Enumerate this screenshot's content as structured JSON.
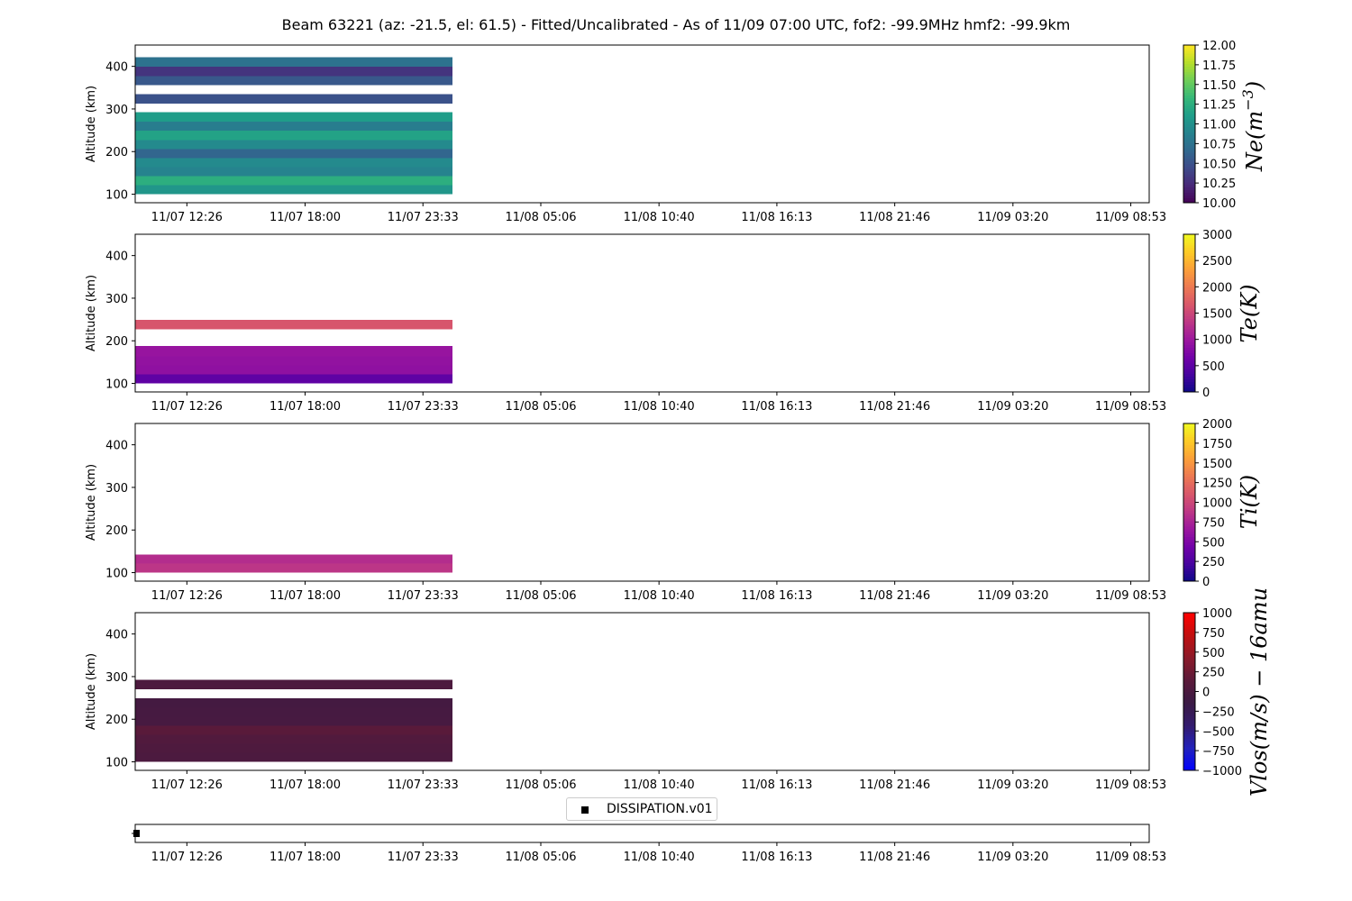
{
  "title": "Beam 63221 (az: -21.5, el: 61.5) - Fitted/Uncalibrated - As of 11/09 07:00 UTC, fof2: -99.9MHz  hmf2: -99.9km",
  "legend": {
    "label": "DISSIPATION.v01"
  },
  "chart_data": [
    {
      "type": "heatmap",
      "parameter": "Ne",
      "ylabel": "Altitude (km)",
      "ylim": [
        80,
        450
      ],
      "yticks": [
        100,
        200,
        300,
        400
      ],
      "xticks": [
        "11/07 12:26",
        "11/07 18:00",
        "11/07 23:33",
        "11/08 05:06",
        "11/08 10:40",
        "11/08 16:13",
        "11/08 21:46",
        "11/09 03:20",
        "11/09 08:53"
      ],
      "x_extent": [
        "11/07 10:00",
        "11/09 09:45"
      ],
      "data_x_range": [
        "11/07 10:00",
        "11/08 00:57"
      ],
      "colorbar": {
        "label": "Ne(m^-3)",
        "colormap": "viridis",
        "range": [
          10,
          12
        ],
        "ticks": [
          "10.00",
          "10.25",
          "10.50",
          "10.75",
          "11.00",
          "11.25",
          "11.50",
          "11.75",
          "12.00"
        ]
      },
      "bins": [
        {
          "alt": [
            100,
            121
          ],
          "value": 11.05
        },
        {
          "alt": [
            121,
            142
          ],
          "value": 11.25
        },
        {
          "alt": [
            142,
            164
          ],
          "value": 10.9
        },
        {
          "alt": [
            164,
            185
          ],
          "value": 10.95
        },
        {
          "alt": [
            185,
            206
          ],
          "value": 10.65
        },
        {
          "alt": [
            206,
            227
          ],
          "value": 10.95
        },
        {
          "alt": [
            227,
            249
          ],
          "value": 11.15
        },
        {
          "alt": [
            249,
            270
          ],
          "value": 10.85
        },
        {
          "alt": [
            270,
            292
          ],
          "value": 11.1
        },
        {
          "alt": [
            313,
            335
          ],
          "value": 10.5
        },
        {
          "alt": [
            356,
            377
          ],
          "value": 10.55
        },
        {
          "alt": [
            377,
            399
          ],
          "value": 10.3
        },
        {
          "alt": [
            399,
            421
          ],
          "value": 10.75
        }
      ]
    },
    {
      "type": "heatmap",
      "parameter": "Te",
      "ylabel": "Altitude (km)",
      "ylim": [
        80,
        450
      ],
      "yticks": [
        100,
        200,
        300,
        400
      ],
      "xticks": [
        "11/07 12:26",
        "11/07 18:00",
        "11/07 23:33",
        "11/08 05:06",
        "11/08 10:40",
        "11/08 16:13",
        "11/08 21:46",
        "11/09 03:20",
        "11/09 08:53"
      ],
      "x_extent": [
        "11/07 10:00",
        "11/09 09:45"
      ],
      "data_x_range": [
        "11/07 10:00",
        "11/08 00:57"
      ],
      "colorbar": {
        "label": "Te(K)",
        "colormap": "plasma",
        "range": [
          0,
          3000
        ],
        "ticks": [
          "0",
          "500",
          "1000",
          "1500",
          "2000",
          "2500",
          "3000"
        ]
      },
      "bins": [
        {
          "alt": [
            100,
            121
          ],
          "value": 520
        },
        {
          "alt": [
            121,
            142
          ],
          "value": 900
        },
        {
          "alt": [
            142,
            164
          ],
          "value": 920
        },
        {
          "alt": [
            164,
            188
          ],
          "value": 960
        },
        {
          "alt": [
            227,
            249
          ],
          "value": 1650
        }
      ]
    },
    {
      "type": "heatmap",
      "parameter": "Ti",
      "ylabel": "Altitude (km)",
      "ylim": [
        80,
        450
      ],
      "yticks": [
        100,
        200,
        300,
        400
      ],
      "xticks": [
        "11/07 12:26",
        "11/07 18:00",
        "11/07 23:33",
        "11/08 05:06",
        "11/08 10:40",
        "11/08 16:13",
        "11/08 21:46",
        "11/09 03:20",
        "11/09 08:53"
      ],
      "x_extent": [
        "11/07 10:00",
        "11/09 09:45"
      ],
      "data_x_range": [
        "11/07 10:00",
        "11/08 00:57"
      ],
      "colorbar": {
        "label": "Ti(K)",
        "colormap": "plasma",
        "range": [
          0,
          2000
        ],
        "ticks": [
          "0",
          "250",
          "500",
          "750",
          "1000",
          "1250",
          "1500",
          "1750",
          "2000"
        ]
      },
      "bins": [
        {
          "alt": [
            100,
            121
          ],
          "value": 880
        },
        {
          "alt": [
            121,
            142
          ],
          "value": 820
        }
      ]
    },
    {
      "type": "heatmap",
      "parameter": "Vlos",
      "ylabel": "Altitude (km)",
      "ylim": [
        80,
        450
      ],
      "yticks": [
        100,
        200,
        300,
        400
      ],
      "xticks": [
        "11/07 12:26",
        "11/07 18:00",
        "11/07 23:33",
        "11/08 05:06",
        "11/08 10:40",
        "11/08 16:13",
        "11/08 21:46",
        "11/09 03:20",
        "11/09 08:53"
      ],
      "x_extent": [
        "11/07 10:00",
        "11/09 09:45"
      ],
      "data_x_range": [
        "11/07 10:00",
        "11/08 00:57"
      ],
      "colorbar": {
        "label": "Vlos(m/s) - 16amu",
        "colormap": "bwr-dark",
        "range": [
          -1000,
          1000
        ],
        "ticks": [
          "-1000",
          "-750",
          "-500",
          "-250",
          "0",
          "250",
          "500",
          "750",
          "1000"
        ]
      },
      "bins": [
        {
          "alt": [
            100,
            121
          ],
          "value": 20
        },
        {
          "alt": [
            121,
            142
          ],
          "value": 40
        },
        {
          "alt": [
            142,
            164
          ],
          "value": 60
        },
        {
          "alt": [
            164,
            185
          ],
          "value": 130
        },
        {
          "alt": [
            185,
            206
          ],
          "value": -30
        },
        {
          "alt": [
            206,
            227
          ],
          "value": -40
        },
        {
          "alt": [
            227,
            249
          ],
          "value": -50
        },
        {
          "alt": [
            270,
            292
          ],
          "value": 30
        }
      ]
    },
    {
      "type": "scatter",
      "xticks": [
        "11/07 12:26",
        "11/07 18:00",
        "11/07 23:33",
        "11/08 05:06",
        "11/08 10:40",
        "11/08 16:13",
        "11/08 21:46",
        "11/09 03:20",
        "11/09 08:53"
      ],
      "x_extent": [
        "11/07 10:00",
        "11/09 09:45"
      ],
      "series": [
        {
          "name": "DISSIPATION.v01",
          "x": [
            "11/07 10:00"
          ],
          "marker": "square",
          "color": "#000000"
        }
      ]
    }
  ]
}
